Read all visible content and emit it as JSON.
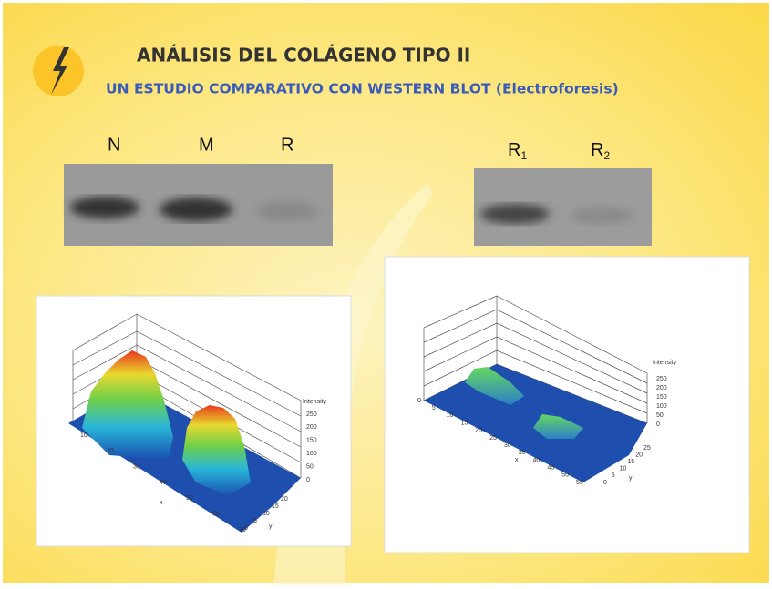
{
  "title": "ANÁLISIS DEL COLÁGENO TIPO II",
  "subtitle": "UN ESTUDIO COMPARATIVO CON WESTERN BLOT (Electroforesis)",
  "blot_left": {
    "lanes": [
      "N",
      "M",
      "R"
    ]
  },
  "blot_right": {
    "lanes": [
      {
        "letter": "R",
        "subscript": "1"
      },
      {
        "letter": "R",
        "subscript": "2"
      }
    ]
  },
  "plot_left": {
    "z_label": "Intensity",
    "z_ticks": [
      250,
      200,
      150,
      100,
      50,
      0
    ],
    "x_label": "x",
    "x_ticks": [
      10,
      20,
      30,
      40,
      50,
      60,
      70
    ],
    "y_label": "y",
    "y_ticks": [
      0,
      5,
      10,
      15,
      20
    ]
  },
  "plot_right": {
    "z_label": "Intensity",
    "z_ticks": [
      250,
      200,
      150,
      100,
      50,
      0
    ],
    "x_label": "x",
    "x_ticks": [
      0,
      5,
      10,
      15,
      20,
      25,
      30,
      35,
      40,
      45,
      50,
      55
    ],
    "y_label": "y",
    "y_ticks": [
      0,
      5,
      10,
      15,
      20,
      25
    ]
  }
}
